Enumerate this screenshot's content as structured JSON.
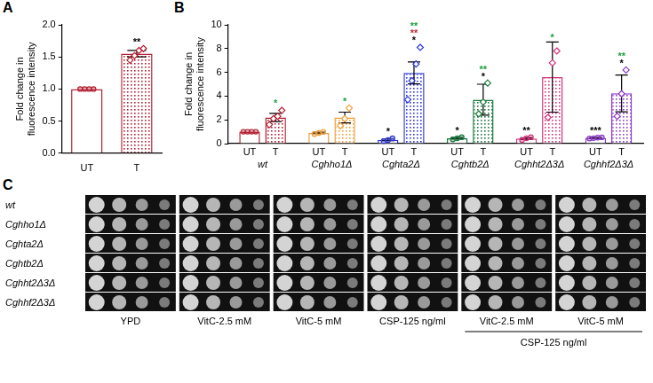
{
  "chart_data": [
    {
      "panel": "A",
      "type": "bar",
      "categories": [
        "UT",
        "T"
      ],
      "values": [
        1.0,
        1.55
      ],
      "errors": [
        0,
        0.05
      ],
      "points": [
        [
          1,
          1,
          1,
          1
        ],
        [
          1.45,
          1.52,
          1.6,
          1.63
        ]
      ],
      "color": "#b22234",
      "significance": [
        [],
        [
          {
            "text": "**",
            "color": "#000000"
          }
        ]
      ],
      "ylabel": "Fold change in fluorescence intensity",
      "ylim": [
        0,
        2
      ],
      "yticks": [
        {
          "value": 0,
          "label": "0.0"
        },
        {
          "value": 0.5,
          "label": "0.5"
        },
        {
          "value": 1,
          "label": "1.0"
        },
        {
          "value": 1.5,
          "label": "1.5"
        },
        {
          "value": 2,
          "label": "2.0"
        }
      ],
      "grid": false
    },
    {
      "panel": "B",
      "type": "bar",
      "categories": [
        "wt",
        "Cghho1Δ",
        "Cghta2Δ",
        "Cghtb2Δ",
        "Cghht2Δ3Δ",
        "Cghhf2Δ3Δ"
      ],
      "colors": [
        "#b22234",
        "#f0a03c",
        "#3038d8",
        "#1b7a3e",
        "#d8327c",
        "#8e3cc8"
      ],
      "series": [
        {
          "name": "UT",
          "marker": "circle",
          "values": [
            1.0,
            0.9,
            0.32,
            0.45,
            0.43,
            0.48
          ],
          "errors": [
            0,
            0.06,
            0.07,
            0.06,
            0.07,
            0.03
          ],
          "points": [
            [
              1,
              1,
              1,
              1
            ],
            [
              0.8,
              0.9,
              1.0
            ],
            [
              0.2,
              0.3,
              0.45
            ],
            [
              0.35,
              0.45,
              0.55
            ],
            [
              0.3,
              0.45,
              0.55
            ],
            [
              0.43,
              0.46,
              0.5,
              0.53
            ]
          ],
          "significance": [
            [],
            [],
            [
              {
                "text": "*",
                "color": "#000000"
              }
            ],
            [
              {
                "text": "*",
                "color": "#000000"
              }
            ],
            [
              {
                "text": "**",
                "color": "#000000"
              }
            ],
            [
              {
                "text": "***",
                "color": "#000000"
              }
            ]
          ]
        },
        {
          "name": "T",
          "marker": "diamond",
          "values": [
            2.2,
            2.2,
            5.95,
            3.7,
            5.6,
            4.23
          ],
          "errors": [
            0.35,
            0.45,
            0.92,
            1.3,
            2.95,
            1.55
          ],
          "points": [
            [
              1.6,
              2.1,
              2.3,
              2.8
            ],
            [
              1.5,
              2.1,
              3.0
            ],
            [
              3.7,
              5.3,
              6.7,
              8.1
            ],
            [
              2.5,
              3.5,
              5.1
            ],
            [
              2.2,
              6.8,
              7.8
            ],
            [
              2.3,
              4.2,
              6.2
            ]
          ],
          "significance": [
            [
              {
                "text": "*",
                "color": "#1a9e3a"
              }
            ],
            [
              {
                "text": "*",
                "color": "#1a9e3a"
              }
            ],
            [
              {
                "text": "**",
                "color": "#1a9e3a"
              },
              {
                "text": "**",
                "color": "#c0262d"
              },
              {
                "text": "*",
                "color": "#000000"
              }
            ],
            [
              {
                "text": "**",
                "color": "#1a9e3a"
              },
              {
                "text": "*",
                "color": "#000000"
              }
            ],
            [
              {
                "text": "*",
                "color": "#1a9e3a"
              }
            ],
            [
              {
                "text": "**",
                "color": "#1a9e3a"
              },
              {
                "text": "*",
                "color": "#000000"
              }
            ]
          ]
        }
      ],
      "ylabel": "Fold change in fluorescence intensity",
      "ylim": [
        0,
        10
      ],
      "yticks": [
        0,
        2,
        4,
        6,
        8,
        10
      ],
      "grid": false
    }
  ],
  "panel_c": {
    "panel": "C",
    "rows": [
      "wt",
      "Cghho1Δ",
      "Cghta2Δ",
      "Cghtb2Δ",
      "Cghht2Δ3Δ",
      "Cghhf2Δ3Δ"
    ],
    "columns": [
      "YPD",
      "VitC-2.5 mM",
      "VitC-5 mM",
      "CSP-125 ng/ml",
      "VitC-2.5 mM",
      "VitC-5 mM"
    ],
    "bracket": {
      "label": "CSP-125 ng/ml",
      "columns": [
        4,
        5
      ]
    }
  }
}
